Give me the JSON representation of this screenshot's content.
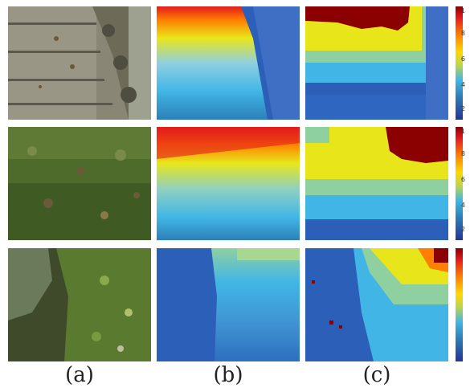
{
  "panels": [
    {
      "label": "(a)",
      "kind": "photo"
    },
    {
      "label": "(b)",
      "kind": "depth-ground-truth"
    },
    {
      "label": "(c)",
      "kind": "depth-prediction"
    }
  ],
  "rows": [
    {
      "scene": "stone-steps",
      "colorbar_ticks": [
        "1",
        "8",
        "6",
        "4",
        "2"
      ]
    },
    {
      "scene": "grass-field",
      "colorbar_ticks": [
        "1",
        "8",
        "6",
        "4",
        "2"
      ]
    },
    {
      "scene": "mossy-rock",
      "colorbar_ticks": [
        "",
        "",
        "",
        "",
        ""
      ]
    }
  ],
  "colors": {
    "deep_red": "#8b0000",
    "red": "#e31a1c",
    "orange": "#ff7f00",
    "yellow": "#e8e61a",
    "cyan": "#41b6e6",
    "blue": "#2c5fb8",
    "navy": "#253494"
  }
}
